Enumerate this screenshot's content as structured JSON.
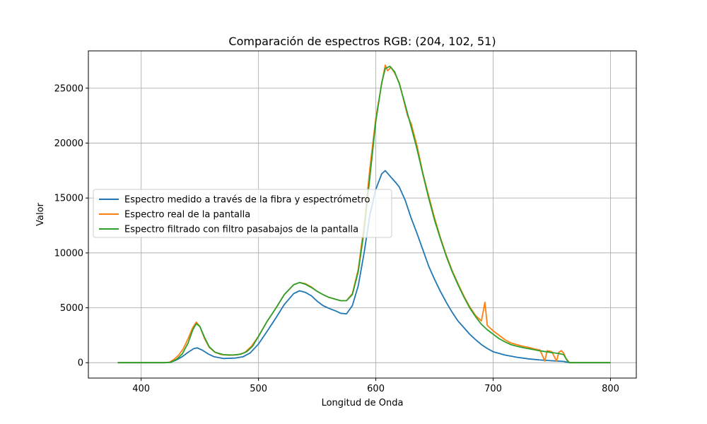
{
  "chart_data": {
    "type": "line",
    "title": "Comparación de espectros RGB: (204, 102, 51)",
    "xlabel": "Longitud de Onda",
    "ylabel": "Valor",
    "xlim": [
      355,
      822
    ],
    "ylim": [
      -1400,
      28400
    ],
    "grid": true,
    "legend_position": "center-left",
    "x_ticks": [
      400,
      500,
      600,
      700,
      800
    ],
    "y_ticks": [
      0,
      5000,
      10000,
      15000,
      20000,
      25000
    ],
    "x_tick_labels": [
      "400",
      "500",
      "600",
      "700",
      "800"
    ],
    "y_tick_labels": [
      "0",
      "5000",
      "10000",
      "15000",
      "20000",
      "25000"
    ],
    "series": [
      {
        "name": "Espectro medido a través de la fibra y espectrómetro",
        "color": "#1f77b4",
        "points": [
          [
            380,
            0
          ],
          [
            400,
            0
          ],
          [
            420,
            0
          ],
          [
            425,
            30
          ],
          [
            430,
            250
          ],
          [
            435,
            550
          ],
          [
            440,
            950
          ],
          [
            445,
            1300
          ],
          [
            448,
            1350
          ],
          [
            452,
            1150
          ],
          [
            457,
            800
          ],
          [
            462,
            550
          ],
          [
            470,
            380
          ],
          [
            480,
            420
          ],
          [
            487,
            550
          ],
          [
            493,
            900
          ],
          [
            500,
            1700
          ],
          [
            507,
            2800
          ],
          [
            515,
            4100
          ],
          [
            522,
            5300
          ],
          [
            530,
            6300
          ],
          [
            535,
            6550
          ],
          [
            540,
            6400
          ],
          [
            545,
            6100
          ],
          [
            550,
            5600
          ],
          [
            555,
            5200
          ],
          [
            560,
            4950
          ],
          [
            566,
            4700
          ],
          [
            570,
            4500
          ],
          [
            575,
            4450
          ],
          [
            580,
            5200
          ],
          [
            585,
            7000
          ],
          [
            590,
            10000
          ],
          [
            595,
            13500
          ],
          [
            600,
            15800
          ],
          [
            605,
            17200
          ],
          [
            608,
            17500
          ],
          [
            612,
            17000
          ],
          [
            617,
            16400
          ],
          [
            620,
            16000
          ],
          [
            625,
            14800
          ],
          [
            630,
            13200
          ],
          [
            635,
            11800
          ],
          [
            640,
            10300
          ],
          [
            645,
            8800
          ],
          [
            650,
            7600
          ],
          [
            655,
            6500
          ],
          [
            660,
            5500
          ],
          [
            665,
            4600
          ],
          [
            670,
            3800
          ],
          [
            675,
            3200
          ],
          [
            680,
            2600
          ],
          [
            685,
            2100
          ],
          [
            690,
            1650
          ],
          [
            695,
            1300
          ],
          [
            700,
            1000
          ],
          [
            710,
            700
          ],
          [
            720,
            500
          ],
          [
            730,
            350
          ],
          [
            740,
            250
          ],
          [
            750,
            180
          ],
          [
            760,
            120
          ],
          [
            765,
            0
          ],
          [
            780,
            0
          ],
          [
            800,
            0
          ]
        ]
      },
      {
        "name": "Espectro real de la pantalla",
        "color": "#ff7f0e",
        "points": [
          [
            380,
            0
          ],
          [
            400,
            0
          ],
          [
            420,
            0
          ],
          [
            424,
            40
          ],
          [
            428,
            300
          ],
          [
            432,
            700
          ],
          [
            436,
            1300
          ],
          [
            440,
            2200
          ],
          [
            444,
            3200
          ],
          [
            447,
            3700
          ],
          [
            450,
            3300
          ],
          [
            454,
            2200
          ],
          [
            458,
            1400
          ],
          [
            463,
            950
          ],
          [
            468,
            750
          ],
          [
            475,
            680
          ],
          [
            482,
            720
          ],
          [
            488,
            900
          ],
          [
            494,
            1500
          ],
          [
            500,
            2400
          ],
          [
            507,
            3700
          ],
          [
            515,
            5000
          ],
          [
            522,
            6200
          ],
          [
            530,
            7100
          ],
          [
            535,
            7300
          ],
          [
            540,
            7200
          ],
          [
            545,
            6900
          ],
          [
            550,
            6500
          ],
          [
            555,
            6200
          ],
          [
            560,
            5950
          ],
          [
            565,
            5800
          ],
          [
            570,
            5650
          ],
          [
            575,
            5650
          ],
          [
            580,
            6300
          ],
          [
            585,
            8500
          ],
          [
            590,
            12500
          ],
          [
            595,
            17800
          ],
          [
            600,
            22300
          ],
          [
            605,
            25400
          ],
          [
            608,
            27100
          ],
          [
            610,
            26600
          ],
          [
            613,
            26900
          ],
          [
            616,
            26400
          ],
          [
            620,
            25500
          ],
          [
            624,
            23800
          ],
          [
            627,
            22500
          ],
          [
            630,
            21800
          ],
          [
            635,
            19800
          ],
          [
            640,
            17300
          ],
          [
            645,
            15200
          ],
          [
            650,
            13200
          ],
          [
            655,
            11400
          ],
          [
            660,
            9800
          ],
          [
            665,
            8400
          ],
          [
            670,
            7200
          ],
          [
            675,
            6100
          ],
          [
            680,
            5100
          ],
          [
            685,
            4300
          ],
          [
            690,
            3800
          ],
          [
            693,
            5500
          ],
          [
            695,
            3400
          ],
          [
            700,
            2900
          ],
          [
            705,
            2500
          ],
          [
            710,
            2100
          ],
          [
            715,
            1800
          ],
          [
            720,
            1650
          ],
          [
            725,
            1500
          ],
          [
            730,
            1400
          ],
          [
            735,
            1250
          ],
          [
            740,
            1150
          ],
          [
            744,
            150
          ],
          [
            746,
            1100
          ],
          [
            750,
            1000
          ],
          [
            754,
            150
          ],
          [
            756,
            950
          ],
          [
            758,
            1100
          ],
          [
            760,
            900
          ],
          [
            762,
            400
          ],
          [
            765,
            0
          ],
          [
            780,
            0
          ],
          [
            800,
            0
          ]
        ]
      },
      {
        "name": "Espectro filtrado con filtro pasabajos de la pantalla",
        "color": "#2ca02c",
        "points": [
          [
            380,
            0
          ],
          [
            400,
            0
          ],
          [
            420,
            0
          ],
          [
            425,
            40
          ],
          [
            430,
            300
          ],
          [
            435,
            800
          ],
          [
            440,
            1800
          ],
          [
            444,
            3000
          ],
          [
            447,
            3550
          ],
          [
            450,
            3300
          ],
          [
            454,
            2300
          ],
          [
            458,
            1450
          ],
          [
            463,
            950
          ],
          [
            470,
            730
          ],
          [
            478,
            700
          ],
          [
            485,
            780
          ],
          [
            490,
            1000
          ],
          [
            495,
            1500
          ],
          [
            500,
            2400
          ],
          [
            507,
            3700
          ],
          [
            515,
            5000
          ],
          [
            522,
            6200
          ],
          [
            530,
            7100
          ],
          [
            535,
            7300
          ],
          [
            540,
            7150
          ],
          [
            545,
            6850
          ],
          [
            550,
            6500
          ],
          [
            555,
            6200
          ],
          [
            560,
            5950
          ],
          [
            565,
            5800
          ],
          [
            570,
            5650
          ],
          [
            575,
            5650
          ],
          [
            580,
            6200
          ],
          [
            585,
            8300
          ],
          [
            590,
            12000
          ],
          [
            595,
            17000
          ],
          [
            600,
            22000
          ],
          [
            605,
            25500
          ],
          [
            608,
            26800
          ],
          [
            612,
            27000
          ],
          [
            616,
            26500
          ],
          [
            620,
            25400
          ],
          [
            625,
            23500
          ],
          [
            630,
            21500
          ],
          [
            635,
            19500
          ],
          [
            640,
            17200
          ],
          [
            645,
            15000
          ],
          [
            650,
            13000
          ],
          [
            655,
            11300
          ],
          [
            660,
            9700
          ],
          [
            665,
            8300
          ],
          [
            670,
            7100
          ],
          [
            675,
            6000
          ],
          [
            680,
            5000
          ],
          [
            685,
            4200
          ],
          [
            690,
            3500
          ],
          [
            695,
            3000
          ],
          [
            700,
            2600
          ],
          [
            705,
            2200
          ],
          [
            710,
            1900
          ],
          [
            715,
            1650
          ],
          [
            720,
            1500
          ],
          [
            725,
            1380
          ],
          [
            730,
            1280
          ],
          [
            735,
            1180
          ],
          [
            740,
            1080
          ],
          [
            745,
            1000
          ],
          [
            750,
            920
          ],
          [
            755,
            850
          ],
          [
            760,
            750
          ],
          [
            763,
            200
          ],
          [
            765,
            0
          ],
          [
            780,
            0
          ],
          [
            800,
            0
          ]
        ]
      }
    ]
  }
}
